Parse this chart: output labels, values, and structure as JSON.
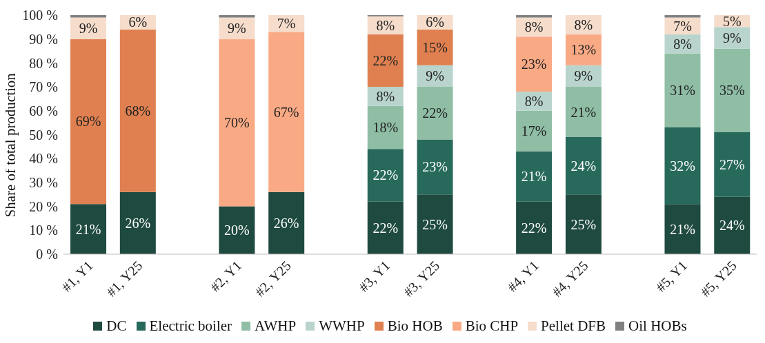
{
  "chart_data": {
    "type": "bar",
    "stacked": true,
    "ylabel": "Share of total production",
    "categories": [
      "#1, Y1",
      "#1, Y25",
      null,
      "#2, Y1",
      "#2, Y25",
      null,
      "#3, Y1",
      "#3, Y25",
      null,
      "#4, Y1",
      "#4, Y25",
      null,
      "#5, Y1",
      "#5, Y25"
    ],
    "series": [
      {
        "name": "DC",
        "color": "#1f4a40",
        "values": [
          21,
          26,
          null,
          20,
          26,
          null,
          22,
          25,
          null,
          22,
          25,
          null,
          21,
          24
        ],
        "value_labels": [
          "21%",
          "26%",
          null,
          "20%",
          "26%",
          null,
          "22%",
          "25%",
          null,
          "22%",
          "25%",
          null,
          "21%",
          "24%"
        ]
      },
      {
        "name": "Electric boiler",
        "color": "#27695b",
        "values": [
          null,
          null,
          null,
          null,
          null,
          null,
          22,
          23,
          null,
          21,
          24,
          null,
          32,
          27
        ],
        "value_labels": [
          null,
          null,
          null,
          null,
          null,
          null,
          "22%",
          "23%",
          null,
          "21%",
          "24%",
          null,
          "32%",
          "27%"
        ]
      },
      {
        "name": "AWHP",
        "color": "#8fbea5",
        "values": [
          null,
          null,
          null,
          null,
          null,
          null,
          18,
          22,
          null,
          17,
          21,
          null,
          31,
          35
        ],
        "value_labels": [
          null,
          null,
          null,
          null,
          null,
          null,
          "18%",
          "22%",
          null,
          "17%",
          "21%",
          null,
          "31%",
          "35%"
        ]
      },
      {
        "name": "WWHP",
        "color": "#b9d4cd",
        "values": [
          null,
          null,
          null,
          null,
          null,
          null,
          8,
          9,
          null,
          8,
          9,
          null,
          8,
          9
        ],
        "value_labels": [
          null,
          null,
          null,
          null,
          null,
          null,
          "8%",
          "9%",
          null,
          "8%",
          "9%",
          null,
          "8%",
          "9%"
        ]
      },
      {
        "name": "Bio HOB",
        "color": "#e08050",
        "values": [
          69,
          68,
          null,
          null,
          null,
          null,
          22,
          15,
          null,
          null,
          null,
          null,
          null,
          null
        ],
        "value_labels": [
          "69%",
          "68%",
          null,
          null,
          null,
          null,
          "22%",
          "15%",
          null,
          null,
          null,
          null,
          null,
          null
        ]
      },
      {
        "name": "Bio CHP",
        "color": "#f9aa85",
        "values": [
          null,
          null,
          null,
          70,
          67,
          null,
          null,
          null,
          null,
          23,
          13,
          null,
          null,
          null
        ],
        "value_labels": [
          null,
          null,
          null,
          "70%",
          "67%",
          null,
          null,
          null,
          null,
          "23%",
          "13%",
          null,
          null,
          null
        ]
      },
      {
        "name": "Pellet DFB",
        "color": "#f5dccb",
        "values": [
          9,
          6,
          null,
          9,
          7,
          null,
          7.5,
          6,
          null,
          8,
          8,
          null,
          7,
          5
        ],
        "value_labels": [
          "9%",
          "6%",
          null,
          "9%",
          "7%",
          null,
          "8%",
          "6%",
          null,
          "8%",
          "8%",
          null,
          "7%",
          "5%"
        ]
      },
      {
        "name": "Oil HOBs",
        "color": "#808080",
        "values": [
          1,
          null,
          null,
          1,
          null,
          null,
          0.5,
          null,
          null,
          1,
          null,
          null,
          1,
          null
        ]
      }
    ],
    "ylim": [
      0,
      100
    ],
    "yticks": [
      {
        "value": 0,
        "label": "0 %"
      },
      {
        "value": 10,
        "label": "10 %"
      },
      {
        "value": 20,
        "label": "20 %"
      },
      {
        "value": 30,
        "label": "30 %"
      },
      {
        "value": 40,
        "label": "40 %"
      },
      {
        "value": 50,
        "label": "50 %"
      },
      {
        "value": 60,
        "label": "60 %"
      },
      {
        "value": 70,
        "label": "70 %"
      },
      {
        "value": 80,
        "label": "80 %"
      },
      {
        "value": 90,
        "label": "90 %"
      },
      {
        "value": 100,
        "label": "100 %"
      }
    ],
    "legend": "bottom"
  }
}
